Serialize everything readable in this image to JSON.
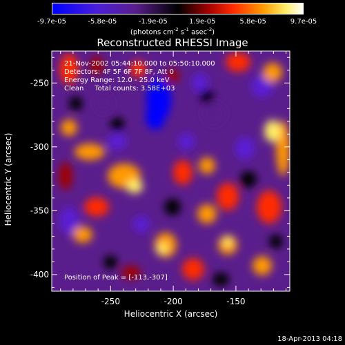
{
  "colorbar": {
    "ticks": [
      "-9.7e-05",
      "-5.8e-05",
      "-1.9e-05",
      "1.9e-05",
      "5.8e-05",
      "9.7e-05"
    ],
    "tick_values": [
      -9.7e-05,
      -5.8e-05,
      -1.9e-05,
      1.9e-05,
      5.8e-05,
      9.7e-05
    ],
    "units_main": "(photons cm",
    "units_exp1": "-2",
    "units_mid": " s",
    "units_exp2": "-1",
    "units_end": " asec",
    "units_exp3": "-2",
    "units_close": ")",
    "range": [
      -9.7e-05,
      9.7e-05
    ],
    "colors": [
      "#0000ff",
      "#5a1fd6",
      "#5a1e8c",
      "#000000",
      "#a00000",
      "#ff2a00",
      "#ff9a00",
      "#ffee66",
      "#ffffff"
    ]
  },
  "chart_data": {
    "type": "heatmap",
    "title": "Reconstructed RHESSI Image",
    "xlabel": "Heliocentric X (arcsec)",
    "ylabel": "Heliocentric Y (arcsec)",
    "xlim": [
      -297,
      -107
    ],
    "ylim": [
      -413,
      -225
    ],
    "xticks": [
      -250,
      -200,
      -150
    ],
    "xtick_labels": [
      "-250",
      "-200",
      "-150"
    ],
    "yticks": [
      -250,
      -300,
      -350,
      -400
    ],
    "ytick_labels": [
      "-250",
      "-300",
      "-350",
      "-400"
    ],
    "peak_position": [
      -113,
      -307
    ],
    "colorscale_range": [
      -9.7e-05,
      9.7e-05
    ]
  },
  "annotations": {
    "time_range": "21-Nov-2002 05:44:10.000 to 05:50:10.000",
    "detectors": "Detectors: 4F 5F 6F 7F 8F, Att 0",
    "energy": "Energy Range: 12.0 - 25.0 keV",
    "clean": "Clean     Total counts: 3.58E+03",
    "peak": "Position of Peak = [-113,-307]"
  },
  "timestamp": "18-Apr-2013 04:18"
}
